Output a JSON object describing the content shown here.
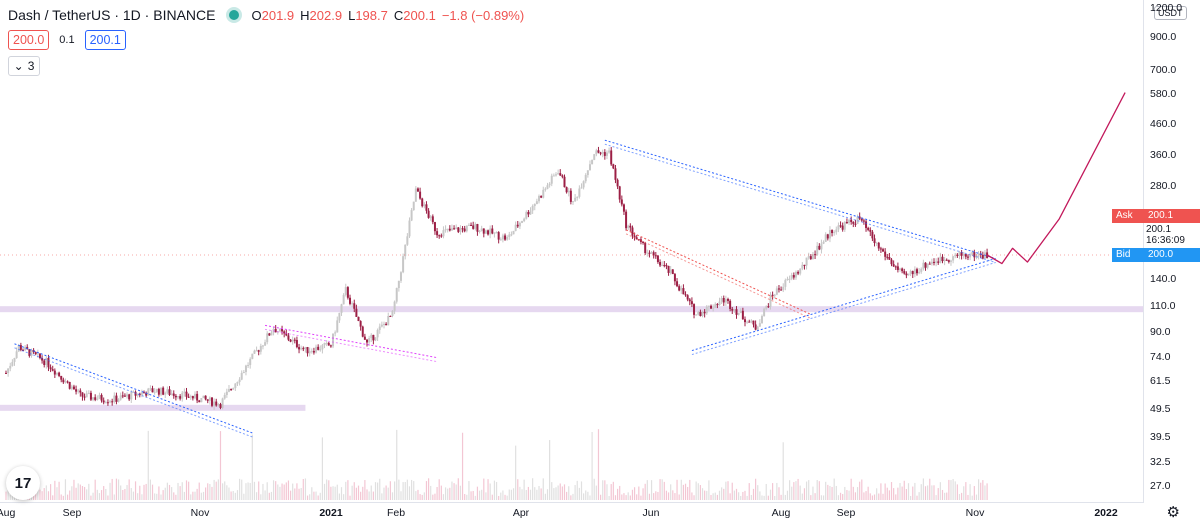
{
  "header": {
    "symbol": "Dash / TetherUS · 1D · BINANCE",
    "open_label": "O",
    "open": "201.9",
    "high_label": "H",
    "high": "202.9",
    "low_label": "L",
    "low": "198.7",
    "close_label": "C",
    "close": "200.1",
    "change": "−1.8 (−0.89%)"
  },
  "quote": {
    "sell": "200.0",
    "spread": "0.1",
    "buy": "200.1"
  },
  "indicators_toggle": {
    "count": "3",
    "icon": "chevron-down-icon"
  },
  "price_axis": {
    "currency": "USDT",
    "ticks": [
      "1200.0",
      "900.0",
      "700.0",
      "580.0",
      "460.0",
      "360.0",
      "280.0",
      "200.0",
      "140.0",
      "110.0",
      "90.0",
      "74.0",
      "61.5",
      "49.5",
      "39.5",
      "32.5",
      "27.0"
    ],
    "ask_label": "Ask",
    "ask": "200.1",
    "last": "200.1",
    "countdown": "16:36:09",
    "bid_label": "Bid",
    "bid": "200.0"
  },
  "time_axis": {
    "labels": [
      "Aug",
      "Sep",
      "Nov",
      "2021",
      "Feb",
      "Apr",
      "Jun",
      "Aug",
      "Sep",
      "Nov",
      "2022"
    ]
  },
  "logo_text": "17",
  "settings_icon": "gear-icon",
  "colors": {
    "up": "#c7c7c7",
    "down": "#9c1f45",
    "accent": "#2962ff",
    "ask": "#ef5350",
    "bid": "#2196f3",
    "zone": "#e6d8f0",
    "projection": "#c2185b"
  },
  "chart_data": {
    "type": "candlestick",
    "scale": "log",
    "ylim": [
      25,
      1300
    ],
    "x": [
      "Aug 2020",
      "Sep 2020",
      "Nov 2020",
      "2021",
      "Feb 2021",
      "Apr 2021",
      "Jun 2021",
      "Aug 2021",
      "Sep 2021",
      "Nov 2021",
      "2022"
    ],
    "close_path": [
      [
        "2020-08-01",
        85
      ],
      [
        "2020-08-07",
        103
      ],
      [
        "2020-08-20",
        92
      ],
      [
        "2020-09-05",
        72
      ],
      [
        "2020-09-20",
        70
      ],
      [
        "2020-10-10",
        75
      ],
      [
        "2020-10-25",
        72
      ],
      [
        "2020-11-10",
        68
      ],
      [
        "2020-11-25",
        95
      ],
      [
        "2020-12-05",
        118
      ],
      [
        "2020-12-20",
        100
      ],
      [
        "2021-01-01",
        104
      ],
      [
        "2021-01-08",
        155
      ],
      [
        "2021-01-18",
        105
      ],
      [
        "2021-01-30",
        130
      ],
      [
        "2021-02-10",
        320
      ],
      [
        "2021-02-20",
        235
      ],
      [
        "2021-03-10",
        245
      ],
      [
        "2021-03-25",
        225
      ],
      [
        "2021-04-10",
        310
      ],
      [
        "2021-04-18",
        370
      ],
      [
        "2021-04-25",
        290
      ],
      [
        "2021-05-05",
        420
      ],
      [
        "2021-05-12",
        420
      ],
      [
        "2021-05-20",
        250
      ],
      [
        "2021-05-27",
        215
      ],
      [
        "2021-06-10",
        175
      ],
      [
        "2021-06-22",
        130
      ],
      [
        "2021-07-05",
        145
      ],
      [
        "2021-07-20",
        118
      ],
      [
        "2021-07-28",
        150
      ],
      [
        "2021-08-10",
        180
      ],
      [
        "2021-08-25",
        240
      ],
      [
        "2021-09-07",
        260
      ],
      [
        "2021-09-15",
        215
      ],
      [
        "2021-09-28",
        170
      ],
      [
        "2021-10-10",
        190
      ],
      [
        "2021-10-25",
        200
      ],
      [
        "2021-11-06",
        200
      ]
    ],
    "volume_note": "volume histogram at bottom",
    "projection": [
      [
        "2021-11-06",
        200
      ],
      [
        "2021-11-13",
        188
      ],
      [
        "2021-11-18",
        210
      ],
      [
        "2021-11-25",
        190
      ],
      [
        "2021-12-10",
        260
      ],
      [
        "2022-01-10",
        650
      ]
    ],
    "trendlines": [
      {
        "from": [
          "2021-05-10",
          460
        ],
        "to": [
          "2021-11-10",
          195
        ],
        "color": "#2962ff"
      },
      {
        "from": [
          "2021-06-20",
          100
        ],
        "to": [
          "2021-11-10",
          195
        ],
        "color": "#2962ff"
      },
      {
        "from": [
          "2020-08-05",
          105
        ],
        "to": [
          "2020-11-25",
          55
        ],
        "color": "#2962ff"
      },
      {
        "from": [
          "2020-12-01",
          120
        ],
        "to": [
          "2021-02-20",
          95
        ],
        "color": "#e040fb"
      },
      {
        "from": [
          "2021-05-20",
          240
        ],
        "to": [
          "2021-08-15",
          130
        ],
        "color": "#ef5350"
      }
    ],
    "zones": [
      {
        "price": 135,
        "span": "full"
      },
      {
        "price": 66,
        "span": "Aug 2020 - Dec 2020"
      }
    ],
    "grid": false
  }
}
